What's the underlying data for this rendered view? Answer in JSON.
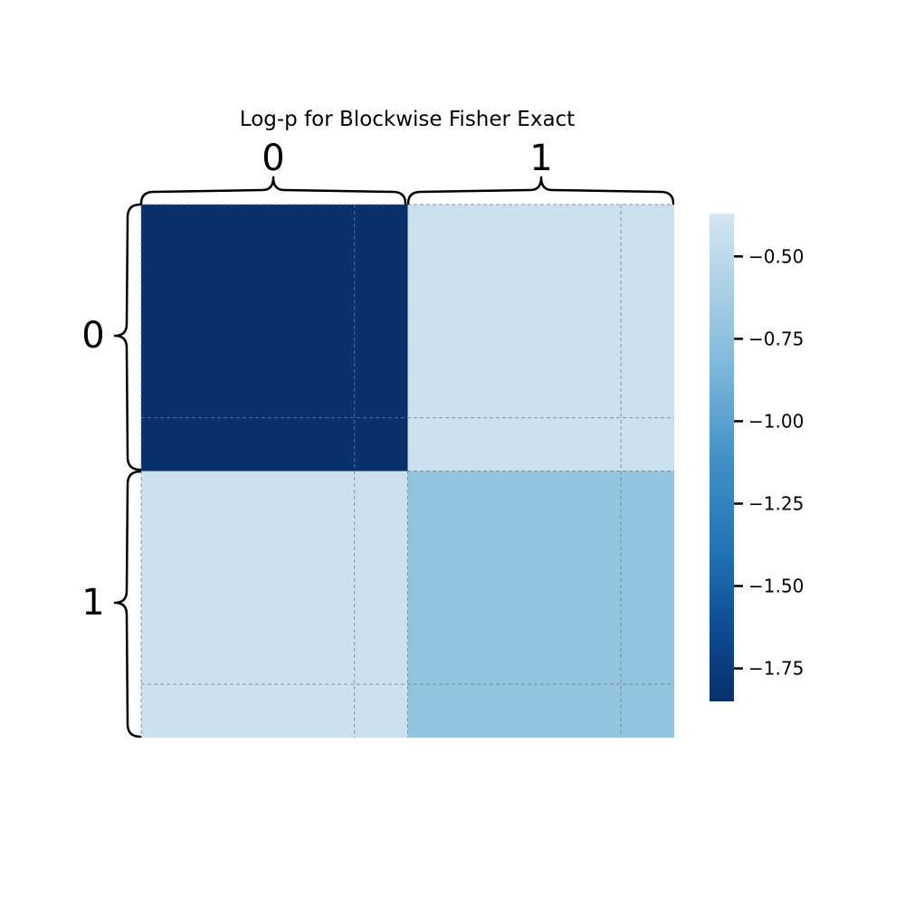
{
  "chart_data": {
    "type": "heatmap",
    "title": "Log-p for Blockwise Fisher Exact",
    "row_labels": [
      "0",
      "1"
    ],
    "col_labels": [
      "0",
      "1"
    ],
    "values": [
      [
        -1.85,
        -0.4
      ],
      [
        -0.4,
        -0.66
      ]
    ],
    "colormap": "Blues_r",
    "colors": {
      "low": "#08306b",
      "high": "#d3e6f0",
      "gridline": "#6a7f8e"
    },
    "colorbar": {
      "range": [
        -1.85,
        -0.37
      ],
      "ticks": [
        -0.5,
        -0.75,
        -1.0,
        -1.25,
        -1.5,
        -1.75
      ],
      "tick_labels": [
        "−0.50",
        "−0.75",
        "−1.00",
        "−1.25",
        "−1.50",
        "−1.75"
      ]
    },
    "gridlines": "dashed"
  }
}
